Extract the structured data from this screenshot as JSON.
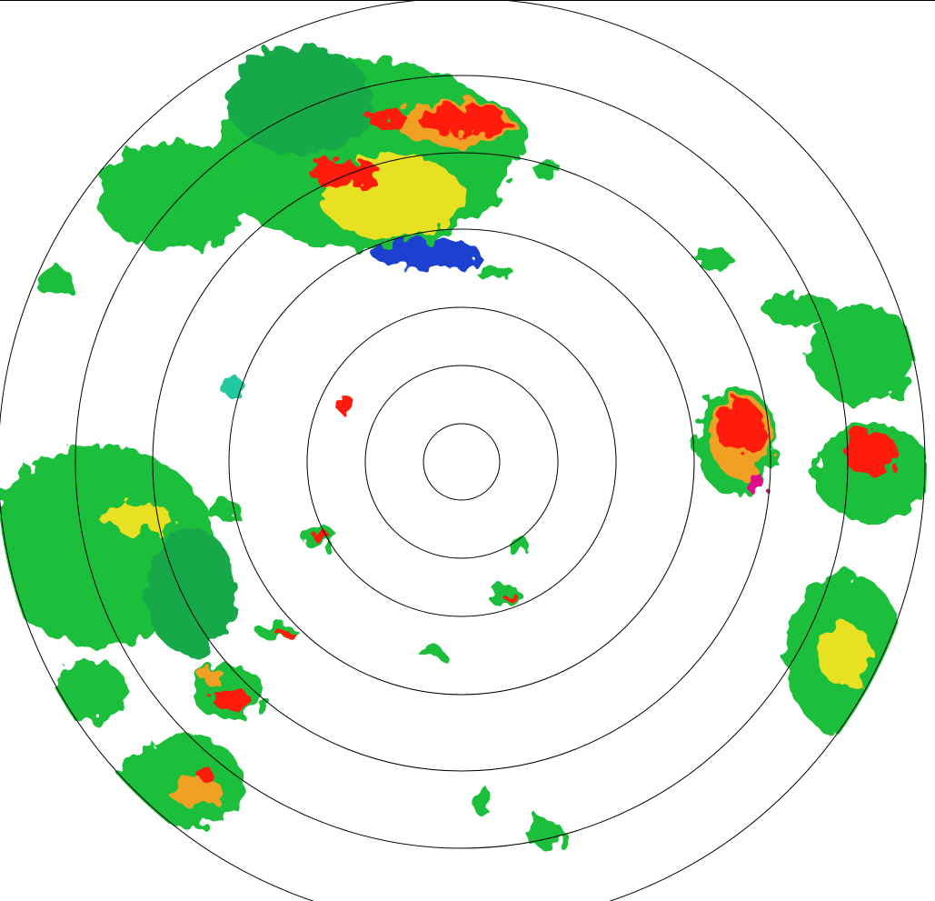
{
  "radar": {
    "display": "reflectivity-ppi",
    "range_rings": 7,
    "background": "#ffffff",
    "ring_color": "#000000",
    "palette": {
      "weak": "#1f3fd0",
      "light": "#22c8a0",
      "moderate": "#1fbf3a",
      "moderate_dark": "#17a84a",
      "heavy": "#e8e020",
      "very_heavy": "#f0a020",
      "intense": "#ff1a10",
      "extreme": "#e0108a"
    }
  }
}
